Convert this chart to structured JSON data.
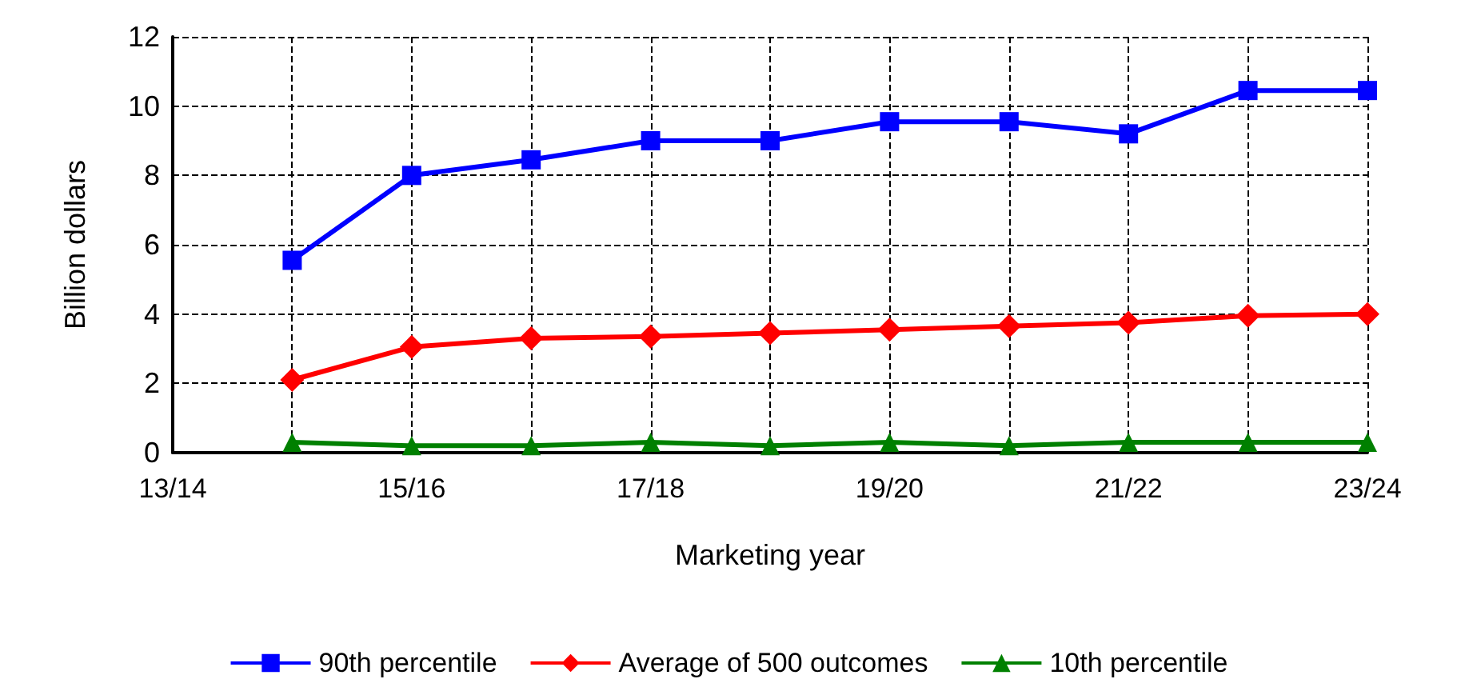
{
  "chart_data": {
    "type": "line",
    "xlabel": "Marketing year",
    "ylabel": "Billion dollars",
    "categories": [
      "13/14",
      null,
      "15/16",
      null,
      "17/18",
      null,
      "19/20",
      null,
      "21/22",
      null,
      "23/24"
    ],
    "series": [
      {
        "name": "90th percentile",
        "color": "#0000ff",
        "marker": "square",
        "values": [
          null,
          5.55,
          8.0,
          8.45,
          9.0,
          9.0,
          9.55,
          9.55,
          9.2,
          10.45,
          10.45
        ]
      },
      {
        "name": "Average of 500 outcomes",
        "color": "#ff0000",
        "marker": "diamond",
        "values": [
          null,
          2.1,
          3.05,
          3.3,
          3.35,
          3.45,
          3.55,
          3.65,
          3.75,
          3.95,
          4.0
        ]
      },
      {
        "name": "10th percentile",
        "color": "#008000",
        "marker": "triangle",
        "values": [
          null,
          0.3,
          0.2,
          0.2,
          0.3,
          0.2,
          0.3,
          0.2,
          0.3,
          0.3,
          0.3
        ]
      }
    ],
    "ylim": [
      0,
      12
    ],
    "yticks": [
      0,
      2,
      4,
      6,
      8,
      10,
      12
    ],
    "grid": true,
    "legend": "bottom",
    "line_style": "solid"
  }
}
